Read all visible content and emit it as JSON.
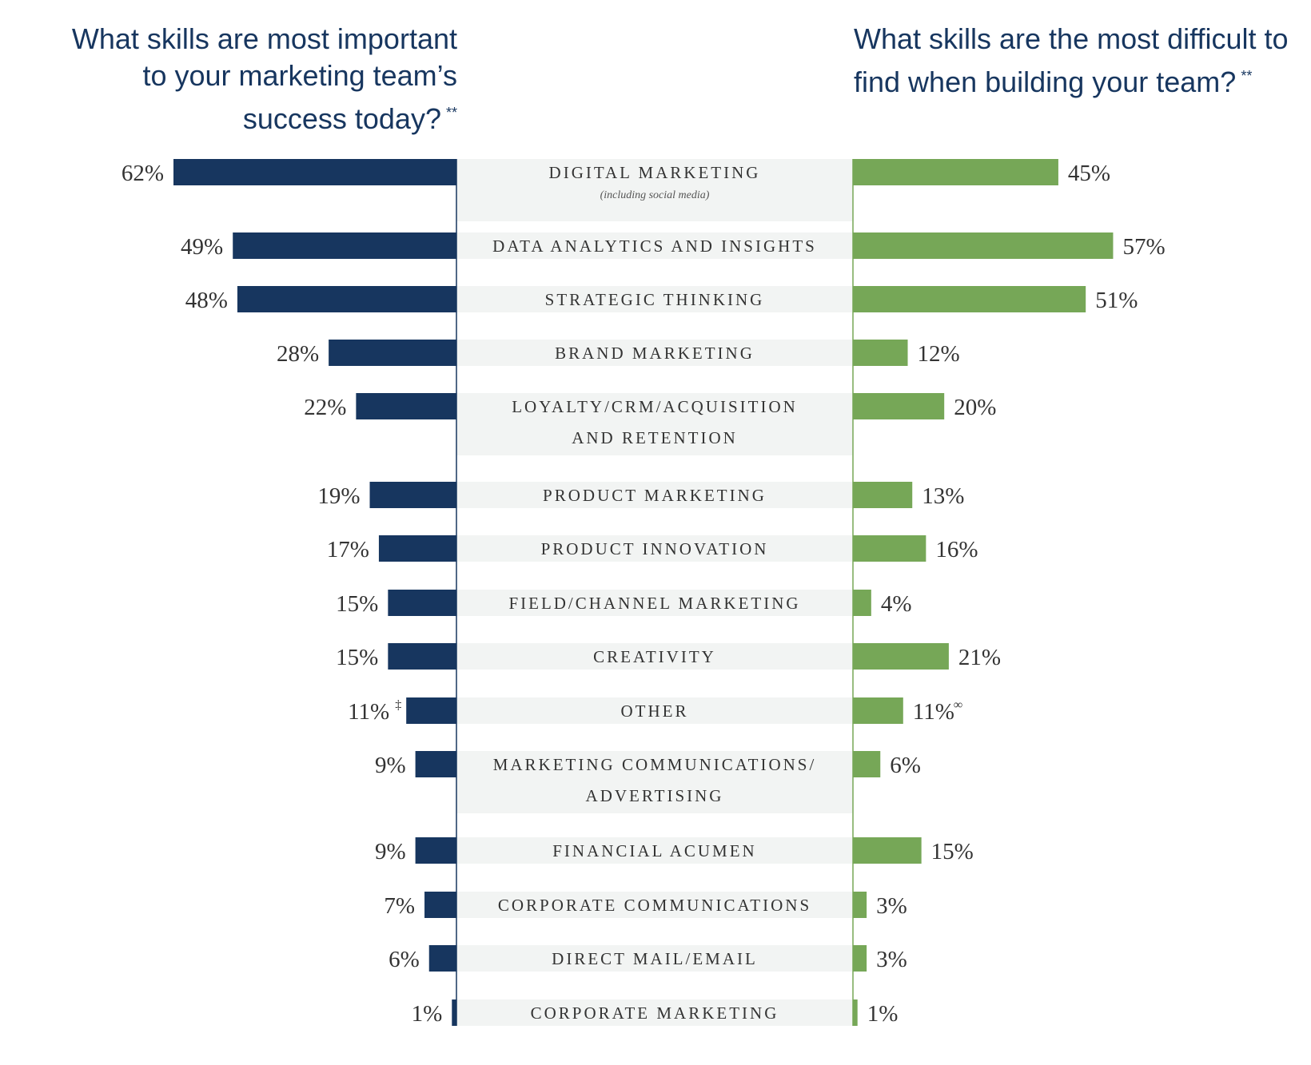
{
  "headers": {
    "left_title": "What skills are most important to your marketing team’s success today?",
    "left_note": "**",
    "right_title": "What skills are the most difficult to find when building your team?",
    "right_note": "**"
  },
  "colors": {
    "left_bar": "#17365f",
    "right_bar": "#76a757",
    "label_band": "#f2f4f3"
  },
  "chart_data": {
    "type": "bar",
    "orientation": "horizontal",
    "layout": "butterfly",
    "value_unit": "%",
    "categories": [
      "DIGITAL MARKETING",
      "DATA ANALYTICS AND INSIGHTS",
      "STRATEGIC THINKING",
      "BRAND MARKETING",
      "LOYALTY/CRM/ACQUISITION AND RETENTION",
      "PRODUCT MARKETING",
      "PRODUCT INNOVATION",
      "FIELD/CHANNEL MARKETING",
      "CREATIVITY",
      "OTHER",
      "MARKETING COMMUNICATIONS/ ADVERTISING",
      "FINANCIAL ACUMEN",
      "CORPORATE COMMUNICATIONS",
      "DIRECT MAIL/EMAIL",
      "CORPORATE MARKETING"
    ],
    "category_lines": [
      [
        "DIGITAL MARKETING"
      ],
      [
        "DATA ANALYTICS AND INSIGHTS"
      ],
      [
        "STRATEGIC THINKING"
      ],
      [
        "BRAND MARKETING"
      ],
      [
        "LOYALTY/CRM/ACQUISITION",
        "AND RETENTION"
      ],
      [
        "PRODUCT MARKETING"
      ],
      [
        "PRODUCT INNOVATION"
      ],
      [
        "FIELD/CHANNEL MARKETING"
      ],
      [
        "CREATIVITY"
      ],
      [
        "OTHER"
      ],
      [
        "MARKETING COMMUNICATIONS/",
        "ADVERTISING"
      ],
      [
        "FINANCIAL ACUMEN"
      ],
      [
        "CORPORATE COMMUNICATIONS"
      ],
      [
        "DIRECT MAIL/EMAIL"
      ],
      [
        "CORPORATE MARKETING"
      ]
    ],
    "category_notes": [
      "(including social media)",
      "",
      "",
      "",
      "",
      "",
      "",
      "",
      "",
      "",
      "",
      "",
      "",
      "",
      ""
    ],
    "series": [
      {
        "values": [
          62,
          49,
          48,
          28,
          22,
          19,
          17,
          15,
          15,
          11,
          9,
          9,
          7,
          6,
          1
        ],
        "marks": [
          "",
          "",
          "",
          "",
          "",
          "",
          "",
          "",
          "",
          "‡",
          "",
          "",
          "",
          "",
          ""
        ]
      },
      {
        "values": [
          45,
          57,
          51,
          12,
          20,
          13,
          16,
          4,
          21,
          11,
          6,
          15,
          3,
          3,
          1
        ],
        "marks": [
          "",
          "",
          "",
          "",
          "",
          "",
          "",
          "",
          "",
          "∞",
          "",
          "",
          "",
          "",
          ""
        ]
      }
    ],
    "xlim": [
      0,
      62
    ],
    "grid": false,
    "legend": "none"
  }
}
